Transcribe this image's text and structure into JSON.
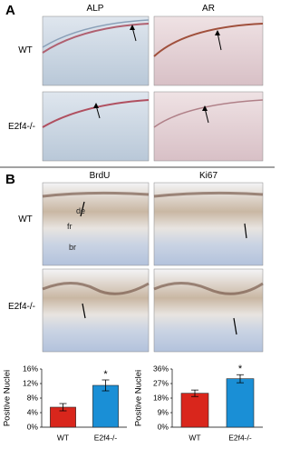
{
  "figure": {
    "panel_a": {
      "label": "A",
      "columns": [
        "ALP",
        "AR"
      ],
      "rows": [
        "WT",
        "E2f4-/-"
      ]
    },
    "panel_b": {
      "label": "B",
      "columns": [
        "BrdU",
        "Ki67"
      ],
      "rows": [
        "WT",
        "E2f4-/-"
      ],
      "annotations": [
        "de",
        "fr",
        "br"
      ]
    }
  },
  "chart_data": [
    {
      "type": "bar",
      "ylabel": "Positive Nuclei",
      "categories": [
        "WT",
        "E2f4-/-"
      ],
      "values": [
        5.5,
        11.5
      ],
      "errors": [
        1,
        1.5
      ],
      "colors": [
        "#d9261c",
        "#1a8fd6"
      ],
      "ylim": [
        0,
        16
      ],
      "yticks": [
        {
          "value": 0,
          "label": "0%"
        },
        {
          "value": 4,
          "label": "4%"
        },
        {
          "value": 8,
          "label": "8%"
        },
        {
          "value": 12,
          "label": "12%"
        },
        {
          "value": 16,
          "label": "16%"
        }
      ],
      "annotations": [
        {
          "category": 1,
          "text": "*"
        }
      ]
    },
    {
      "type": "bar",
      "ylabel": "Positive Nuclei",
      "categories": [
        "WT",
        "E2f4-/-"
      ],
      "values": [
        21,
        30
      ],
      "errors": [
        2,
        2.5
      ],
      "colors": [
        "#d9261c",
        "#1a8fd6"
      ],
      "ylim": [
        0,
        36
      ],
      "yticks": [
        {
          "value": 0,
          "label": "0%"
        },
        {
          "value": 9,
          "label": "9%"
        },
        {
          "value": 18,
          "label": "18%"
        },
        {
          "value": 27,
          "label": "27%"
        },
        {
          "value": 36,
          "label": "36%"
        }
      ],
      "annotations": [
        {
          "category": 1,
          "text": "*"
        }
      ]
    }
  ]
}
